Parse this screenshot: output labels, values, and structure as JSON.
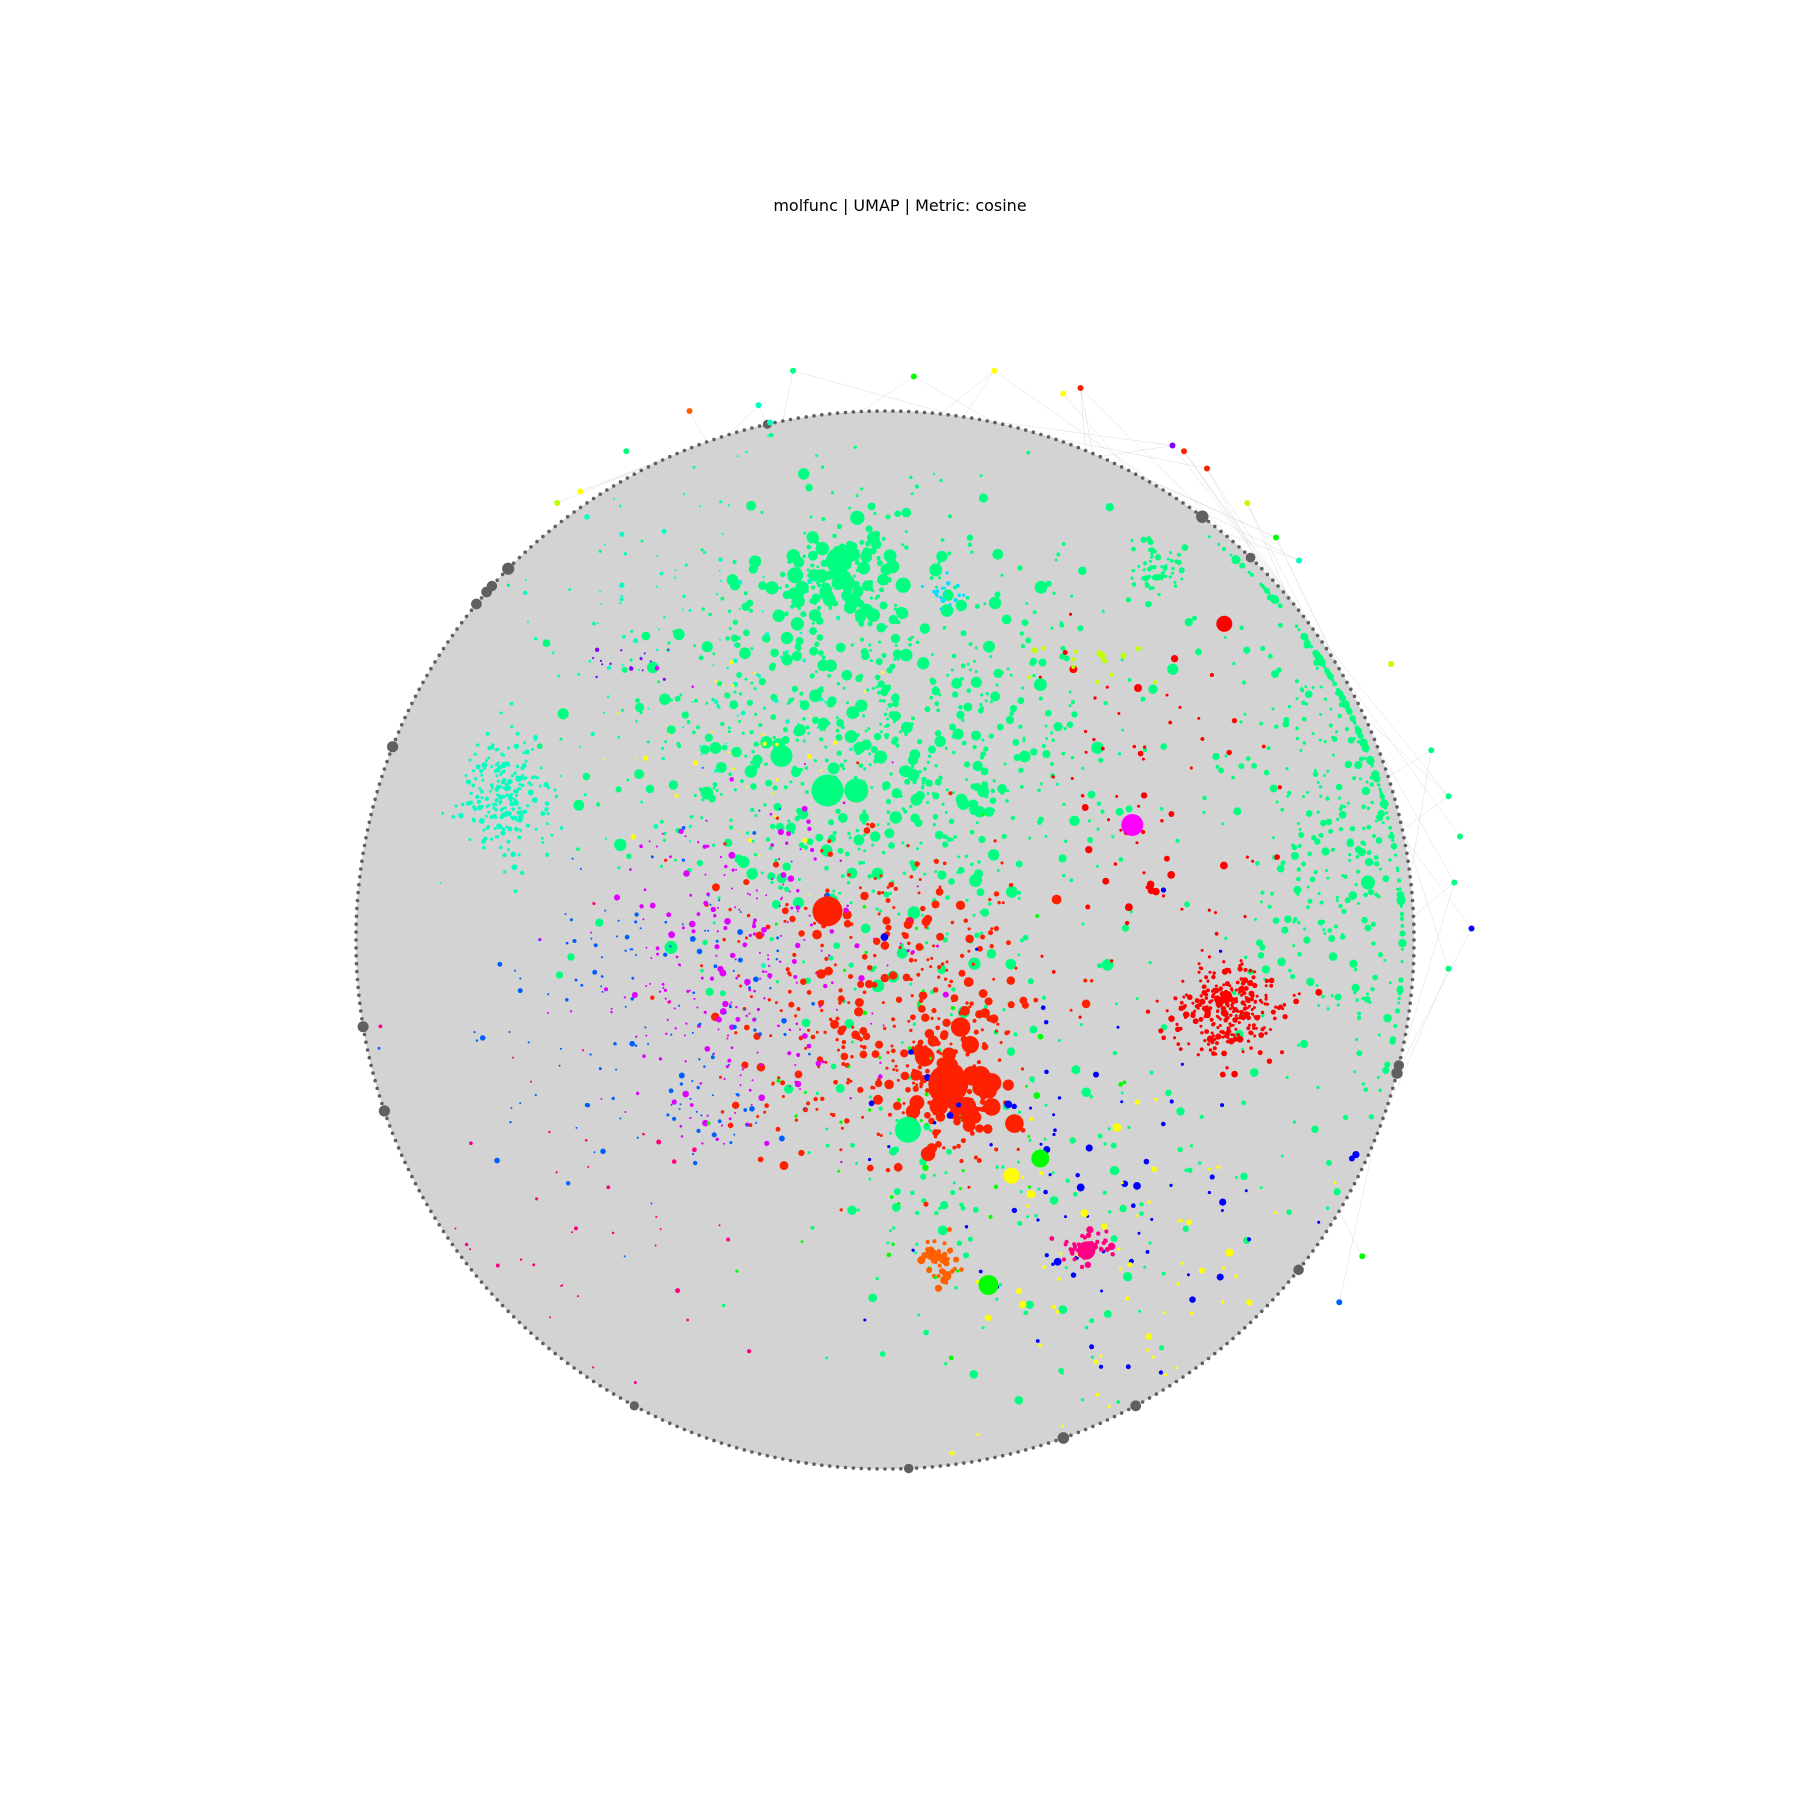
{
  "chart_data": {
    "type": "scatter",
    "title": "molfunc | UMAP | Metric: cosine",
    "xlabel": "",
    "ylabel": "",
    "axes_visible": false,
    "grid": false,
    "legend": "none",
    "xlim": [
      -1.0,
      1.0
    ],
    "ylim": [
      -1.0,
      1.0
    ],
    "background_disc_color": "#d3d3d3",
    "edge_color": "#e8e8e8",
    "ring_node_color": "#606060",
    "ring_radius": 0.92,
    "seed": 7,
    "clusters": [
      {
        "color": "#00ff80",
        "x": -0.01,
        "y": 0.34,
        "sx": 0.22,
        "sy": 0.2,
        "n": 900,
        "size": [
          1.5,
          6.5
        ]
      },
      {
        "color": "#00ff80",
        "x": -0.08,
        "y": 0.64,
        "sx": 0.05,
        "sy": 0.04,
        "n": 120,
        "size": [
          2,
          8
        ]
      },
      {
        "color": "#00ff80",
        "x": 0.8,
        "y": 0.23,
        "sx": 0.1,
        "sy": 0.24,
        "n": 450,
        "size": [
          1.5,
          4.5
        ]
      },
      {
        "color": "#00ff80",
        "x": 0.47,
        "y": 0.65,
        "sx": 0.025,
        "sy": 0.025,
        "n": 60,
        "size": [
          1.5,
          3.5
        ]
      },
      {
        "color": "#00ff80",
        "x": 0.25,
        "y": -0.4,
        "sx": 0.22,
        "sy": 0.2,
        "n": 160,
        "size": [
          1.5,
          5
        ]
      },
      {
        "color": "#00ffc0",
        "x": -0.66,
        "y": 0.25,
        "sx": 0.04,
        "sy": 0.05,
        "n": 220,
        "size": [
          1.5,
          3
        ]
      },
      {
        "color": "#00ffc0",
        "x": -0.35,
        "y": 0.5,
        "sx": 0.15,
        "sy": 0.16,
        "n": 120,
        "size": [
          1,
          3
        ]
      },
      {
        "color": "#ff2000",
        "x": 0.0,
        "y": -0.1,
        "sx": 0.15,
        "sy": 0.14,
        "n": 380,
        "size": [
          1.5,
          5
        ]
      },
      {
        "color": "#ff2000",
        "x": 0.12,
        "y": -0.27,
        "sx": 0.04,
        "sy": 0.05,
        "n": 120,
        "size": [
          2,
          10
        ]
      },
      {
        "color": "#ff0000",
        "x": 0.6,
        "y": -0.12,
        "sx": 0.045,
        "sy": 0.04,
        "n": 300,
        "size": [
          1.5,
          3.5
        ]
      },
      {
        "color": "#ff0000",
        "x": 0.45,
        "y": 0.25,
        "sx": 0.1,
        "sy": 0.15,
        "n": 70,
        "size": [
          1.5,
          4
        ]
      },
      {
        "color": "#e000ff",
        "x": -0.25,
        "y": -0.05,
        "sx": 0.13,
        "sy": 0.16,
        "n": 260,
        "size": [
          1,
          3.5
        ]
      },
      {
        "color": "#0060ff",
        "x": -0.4,
        "y": -0.15,
        "sx": 0.15,
        "sy": 0.15,
        "n": 150,
        "size": [
          1,
          3
        ]
      },
      {
        "color": "#0000ff",
        "x": 0.35,
        "y": -0.4,
        "sx": 0.2,
        "sy": 0.18,
        "n": 80,
        "size": [
          1.5,
          4
        ]
      },
      {
        "color": "#ffff00",
        "x": 0.4,
        "y": -0.55,
        "sx": 0.14,
        "sy": 0.14,
        "n": 60,
        "size": [
          1.5,
          4.5
        ]
      },
      {
        "color": "#ffff00",
        "x": -0.25,
        "y": 0.35,
        "sx": 0.12,
        "sy": 0.14,
        "n": 35,
        "size": [
          1,
          3
        ]
      },
      {
        "color": "#ff0080",
        "x": 0.35,
        "y": -0.54,
        "sx": 0.02,
        "sy": 0.015,
        "n": 40,
        "size": [
          2,
          4
        ]
      },
      {
        "color": "#ff0080",
        "x": -0.5,
        "y": -0.45,
        "sx": 0.15,
        "sy": 0.2,
        "n": 40,
        "size": [
          1,
          3
        ]
      },
      {
        "color": "#ff6000",
        "x": 0.1,
        "y": -0.56,
        "sx": 0.02,
        "sy": 0.02,
        "n": 40,
        "size": [
          2,
          5
        ]
      },
      {
        "color": "#00e0ff",
        "x": 0.1,
        "y": 0.6,
        "sx": 0.02,
        "sy": 0.015,
        "n": 20,
        "size": [
          1.5,
          3
        ]
      },
      {
        "color": "#c0ff00",
        "x": 0.36,
        "y": 0.48,
        "sx": 0.06,
        "sy": 0.02,
        "n": 15,
        "size": [
          2,
          3.5
        ]
      },
      {
        "color": "#8000ff",
        "x": -0.45,
        "y": 0.48,
        "sx": 0.03,
        "sy": 0.02,
        "n": 15,
        "size": [
          1,
          2.5
        ]
      },
      {
        "color": "#00ff00",
        "x": 0.05,
        "y": -0.35,
        "sx": 0.15,
        "sy": 0.2,
        "n": 50,
        "size": [
          1.5,
          4
        ]
      }
    ],
    "big_nodes": [
      {
        "color": "#ff2000",
        "x": -0.1,
        "y": 0.05,
        "r": 15
      },
      {
        "color": "#ff2000",
        "x": 0.11,
        "y": -0.25,
        "r": 20
      },
      {
        "color": "#00ff80",
        "x": -0.1,
        "y": 0.26,
        "r": 16
      },
      {
        "color": "#00ff80",
        "x": -0.05,
        "y": 0.26,
        "r": 12
      },
      {
        "color": "#00ff80",
        "x": -0.08,
        "y": 0.66,
        "r": 13
      },
      {
        "color": "#00ff80",
        "x": -0.18,
        "y": 0.32,
        "r": 11
      },
      {
        "color": "#00ff80",
        "x": 0.04,
        "y": -0.33,
        "r": 13
      },
      {
        "color": "#00ff00",
        "x": 0.27,
        "y": -0.38,
        "r": 9
      },
      {
        "color": "#00ff00",
        "x": 0.18,
        "y": -0.6,
        "r": 10
      },
      {
        "color": "#ff00ff",
        "x": 0.43,
        "y": 0.2,
        "r": 11
      },
      {
        "color": "#ffff00",
        "x": 0.22,
        "y": -0.41,
        "r": 8
      },
      {
        "color": "#ff0000",
        "x": 0.59,
        "y": 0.55,
        "r": 8
      },
      {
        "color": "#ff0080",
        "x": 0.35,
        "y": -0.54,
        "r": 9
      },
      {
        "color": "#00ff80",
        "x": 0.84,
        "y": 0.1,
        "r": 7
      }
    ],
    "outer_nodes": [
      {
        "color": "#00ff80",
        "x": -0.16,
        "y": 0.99
      },
      {
        "color": "#00ff00",
        "x": 0.05,
        "y": 0.98
      },
      {
        "color": "#ffff00",
        "x": 0.19,
        "y": 0.99
      },
      {
        "color": "#ff2000",
        "x": 0.34,
        "y": 0.96
      },
      {
        "color": "#ffff00",
        "x": 0.31,
        "y": 0.95
      },
      {
        "color": "#ff2000",
        "x": 0.52,
        "y": 0.85
      },
      {
        "color": "#ff2000",
        "x": 0.56,
        "y": 0.82
      },
      {
        "color": "#c0ff00",
        "x": 0.63,
        "y": 0.76
      },
      {
        "color": "#00ff00",
        "x": 0.68,
        "y": 0.7
      },
      {
        "color": "#c0ff00",
        "x": 0.88,
        "y": 0.48
      },
      {
        "color": "#00ff80",
        "x": 0.95,
        "y": 0.33
      },
      {
        "color": "#00ff80",
        "x": 0.98,
        "y": 0.25
      },
      {
        "color": "#00ff80",
        "x": 1.0,
        "y": 0.18
      },
      {
        "color": "#00ff80",
        "x": 0.99,
        "y": 0.1
      },
      {
        "color": "#0000ff",
        "x": 1.02,
        "y": 0.02
      },
      {
        "color": "#00ff80",
        "x": 0.98,
        "y": -0.05
      },
      {
        "color": "#00ff00",
        "x": 0.83,
        "y": -0.55
      },
      {
        "color": "#0060ff",
        "x": 0.79,
        "y": -0.63
      },
      {
        "color": "#00ffc0",
        "x": -0.22,
        "y": 0.93
      },
      {
        "color": "#ff6000",
        "x": -0.34,
        "y": 0.92
      },
      {
        "color": "#00ffc0",
        "x": -0.2,
        "y": 0.9
      },
      {
        "color": "#c0ff00",
        "x": -0.57,
        "y": 0.76
      },
      {
        "color": "#ffff00",
        "x": -0.53,
        "y": 0.78
      },
      {
        "color": "#00ff80",
        "x": -0.45,
        "y": 0.85
      },
      {
        "color": "#00ffc0",
        "x": 0.72,
        "y": 0.66
      },
      {
        "color": "#8000ff",
        "x": 0.5,
        "y": 0.86
      }
    ]
  }
}
